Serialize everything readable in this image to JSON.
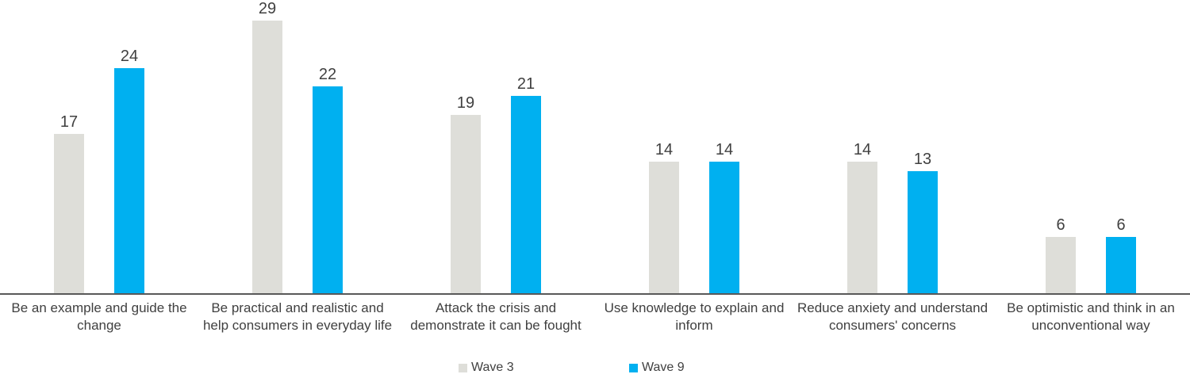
{
  "chart_data": {
    "type": "bar",
    "categories": [
      "Be an example and guide the change",
      "Be practical and realistic and help consumers in everyday life",
      "Attack the crisis and demonstrate it can be fought",
      "Use knowledge to explain and inform",
      "Reduce anxiety and understand consumers' concerns",
      "Be optimistic and think in an unconventional way"
    ],
    "series": [
      {
        "name": "Wave 3",
        "color": "#deded9",
        "values": [
          17,
          29,
          19,
          14,
          14,
          6
        ]
      },
      {
        "name": "Wave 9",
        "color": "#00b0f0",
        "values": [
          24,
          22,
          21,
          14,
          13,
          6
        ]
      }
    ],
    "title": "",
    "xlabel": "",
    "ylabel": "",
    "ylim": [
      0,
      30
    ],
    "grid": false,
    "value_labels": true,
    "legend_position": "bottom",
    "axis_line_color": "#595959",
    "text_color": "#404040",
    "background_color": "#ffffff"
  }
}
